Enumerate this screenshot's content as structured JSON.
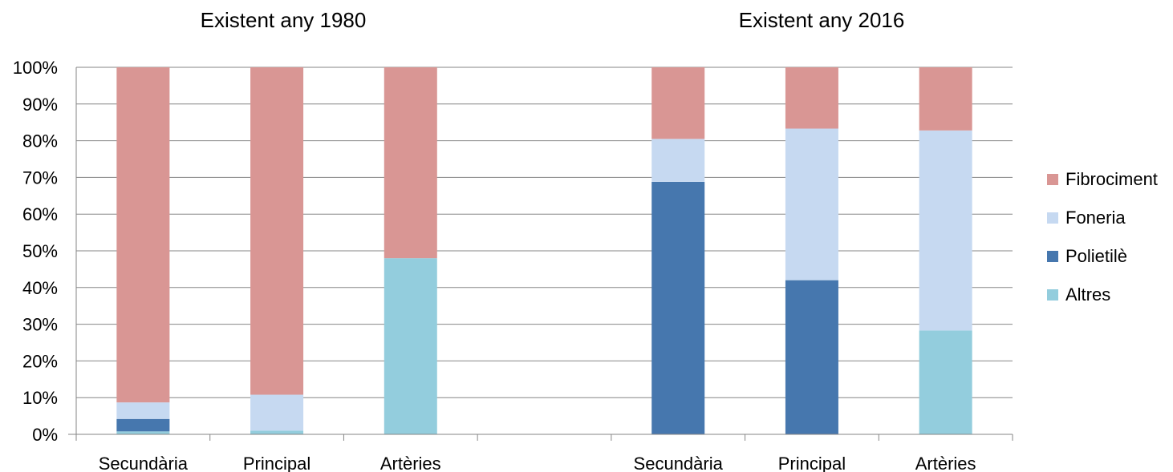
{
  "chart_data": {
    "type": "bar",
    "stacked": true,
    "percent": true,
    "ylim": [
      0,
      100
    ],
    "yticks": [
      "0%",
      "10%",
      "20%",
      "30%",
      "40%",
      "50%",
      "60%",
      "70%",
      "80%",
      "90%",
      "100%"
    ],
    "legend": {
      "placement": "right",
      "entries": [
        {
          "name": "Fibrociment",
          "color": "#D99694"
        },
        {
          "name": "Foneria",
          "color": "#C6D9F1"
        },
        {
          "name": "Polietilè",
          "color": "#4677AE"
        },
        {
          "name": "Altres",
          "color": "#93CDDD"
        }
      ]
    },
    "groups": [
      {
        "title": "Existent any 1980",
        "categories": [
          "Secundària",
          "Principal",
          "Artèries"
        ],
        "series": [
          {
            "name": "Altres",
            "values": [
              0.8,
              1.0,
              48.0
            ]
          },
          {
            "name": "Polietilè",
            "values": [
              3.4,
              0.0,
              0.0
            ]
          },
          {
            "name": "Foneria",
            "values": [
              4.5,
              9.8,
              0.0
            ]
          },
          {
            "name": "Fibrociment",
            "values": [
              91.3,
              89.2,
              52.0
            ]
          }
        ]
      },
      {
        "title": "Existent any 2016",
        "categories": [
          "Secundària",
          "Principal",
          "Artèries"
        ],
        "series": [
          {
            "name": "Altres",
            "values": [
              0.0,
              0.0,
              28.3
            ]
          },
          {
            "name": "Polietilè",
            "values": [
              68.8,
              42.0,
              0.0
            ]
          },
          {
            "name": "Foneria",
            "values": [
              11.7,
              41.3,
              54.5
            ]
          },
          {
            "name": "Fibrociment",
            "values": [
              19.5,
              16.7,
              17.2
            ]
          }
        ]
      }
    ]
  }
}
